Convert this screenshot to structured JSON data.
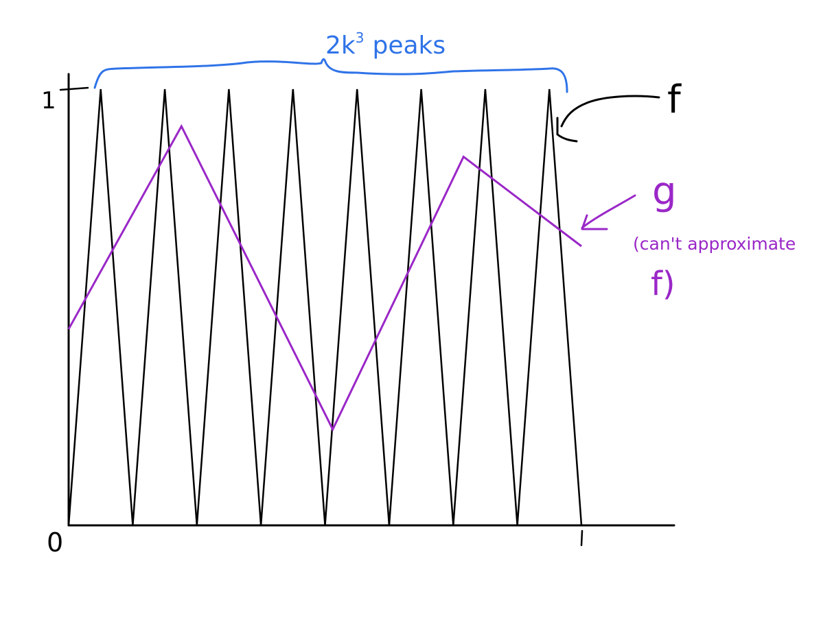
{
  "labels": {
    "y_tick_one": "1",
    "x_tick_zero": "0",
    "x_tick_one": "1",
    "brace_label_prefix": "2k",
    "brace_label_exponent": "3",
    "brace_label_suffix": "peaks",
    "f_label": "f",
    "g_label": "g",
    "g_note_line1": "(can't approximate",
    "g_note_line2": "f)"
  },
  "colors": {
    "axes": "#000000",
    "f": "#000000",
    "g": "#9a27c7",
    "brace": "#2f73e8"
  },
  "chart_data": {
    "type": "line",
    "xlim": [
      0,
      1
    ],
    "ylim": [
      0,
      1
    ],
    "series": [
      {
        "name": "f",
        "x": [
          0,
          0.0625,
          0.125,
          0.1875,
          0.25,
          0.3125,
          0.375,
          0.4375,
          0.5,
          0.5625,
          0.625,
          0.6875,
          0.75,
          0.8125,
          0.875,
          0.9375,
          1
        ],
        "y": [
          0,
          1,
          0,
          1,
          0,
          1,
          0,
          1,
          0,
          1,
          0,
          1,
          0,
          1,
          0,
          1,
          0
        ]
      },
      {
        "name": "g",
        "x": [
          0,
          0.22,
          0.515,
          0.77,
          1
        ],
        "y": [
          0.45,
          0.915,
          0.22,
          0.845,
          0.64
        ]
      }
    ]
  }
}
